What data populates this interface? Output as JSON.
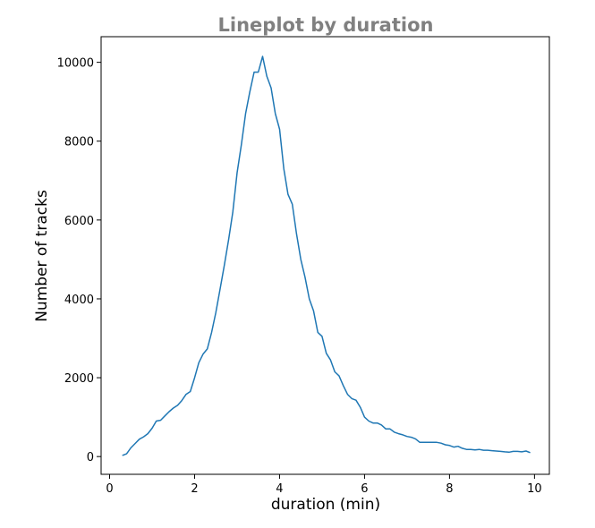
{
  "chart_data": {
    "type": "line",
    "title": "Lineplot by duration",
    "xlabel": "duration (min)",
    "ylabel": "Number of tracks",
    "xlim": [
      -0.2,
      10.35
    ],
    "ylim": [
      -450,
      10650
    ],
    "xticks": [
      "0",
      "2",
      "4",
      "6",
      "8",
      "10"
    ],
    "yticks": [
      "0",
      "2000",
      "4000",
      "6000",
      "8000",
      "10000"
    ],
    "grid": false,
    "line_color": "#1f77b4",
    "series": [
      {
        "x": [
          0.3,
          0.4,
          0.5,
          0.6,
          0.7,
          0.8,
          0.9,
          1.0,
          1.1,
          1.2,
          1.3,
          1.4,
          1.5,
          1.6,
          1.7,
          1.8,
          1.9,
          2.0,
          2.1,
          2.2,
          2.3,
          2.4,
          2.5,
          2.6,
          2.7,
          2.8,
          2.9,
          3.0,
          3.1,
          3.2,
          3.3,
          3.4,
          3.5,
          3.6,
          3.7,
          3.8,
          3.9,
          4.0,
          4.1,
          4.2,
          4.3,
          4.4,
          4.5,
          4.6,
          4.7,
          4.8,
          4.9,
          5.0,
          5.1,
          5.2,
          5.3,
          5.4,
          5.5,
          5.6,
          5.7,
          5.8,
          5.9,
          6.0,
          6.1,
          6.2,
          6.3,
          6.4,
          6.5,
          6.6,
          6.7,
          6.8,
          6.9,
          7.0,
          7.1,
          7.2,
          7.3,
          7.4,
          7.5,
          7.6,
          7.7,
          7.8,
          7.9,
          8.0,
          8.1,
          8.2,
          8.3,
          8.4,
          8.5,
          8.6,
          8.7,
          8.8,
          8.9,
          9.0,
          9.1,
          9.2,
          9.3,
          9.4,
          9.5,
          9.6,
          9.7,
          9.8,
          9.9
        ],
        "y": [
          30,
          70,
          220,
          330,
          440,
          500,
          580,
          720,
          900,
          920,
          1030,
          1140,
          1230,
          1300,
          1420,
          1580,
          1650,
          2000,
          2380,
          2600,
          2730,
          3150,
          3650,
          4250,
          4850,
          5500,
          6200,
          7200,
          7900,
          8700,
          9250,
          9750,
          9750,
          10150,
          9650,
          9350,
          8700,
          8300,
          7300,
          6650,
          6400,
          5650,
          5000,
          4550,
          4000,
          3700,
          3150,
          3050,
          2620,
          2450,
          2150,
          2050,
          1800,
          1580,
          1470,
          1430,
          1250,
          1000,
          900,
          850,
          850,
          800,
          700,
          700,
          620,
          580,
          550,
          510,
          490,
          450,
          360,
          360,
          360,
          360,
          360,
          340,
          300,
          280,
          240,
          260,
          210,
          180,
          180,
          170,
          180,
          160,
          160,
          150,
          140,
          130,
          120,
          110,
          130,
          130,
          120,
          140,
          100
        ]
      }
    ]
  }
}
